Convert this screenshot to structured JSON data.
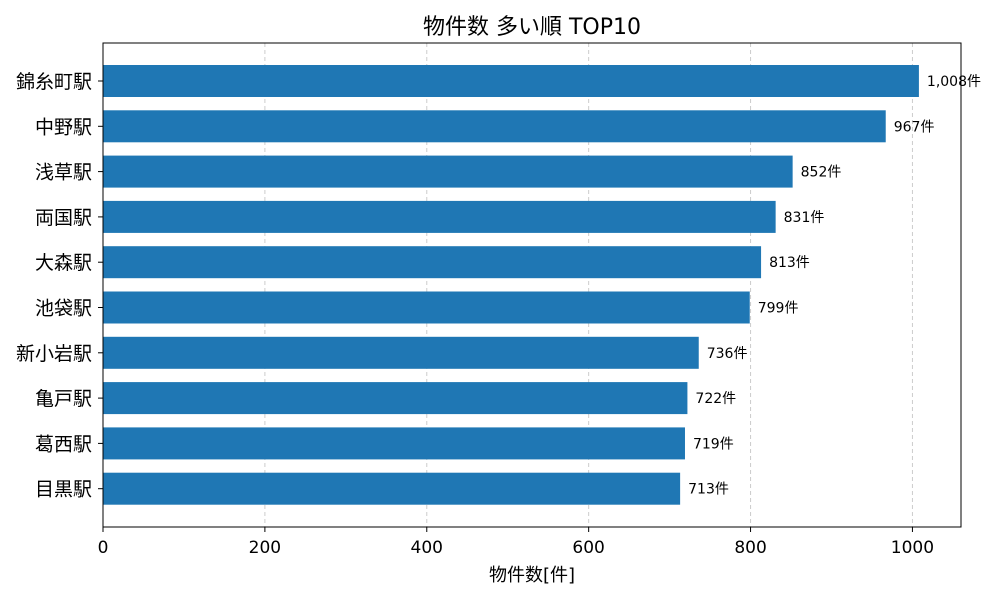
{
  "chart_data": {
    "type": "bar",
    "orientation": "horizontal",
    "title": "物件数 多い順 TOP10",
    "xlabel": "物件数[件]",
    "ylabel": "",
    "categories": [
      "錦糸町駅",
      "中野駅",
      "浅草駅",
      "両国駅",
      "大森駅",
      "池袋駅",
      "新小岩駅",
      "亀戸駅",
      "葛西駅",
      "目黒駅"
    ],
    "values": [
      1008,
      967,
      852,
      831,
      813,
      799,
      736,
      722,
      719,
      713
    ],
    "data_labels": [
      "1,008件",
      "967件",
      "852件",
      "831件",
      "813件",
      "799件",
      "736件",
      "722件",
      "719件",
      "713件"
    ],
    "xlim": [
      0,
      1060
    ],
    "xticks": [
      0,
      200,
      400,
      600,
      800,
      1000
    ],
    "grid": "x-dashed",
    "bar_color": "#1f77b4"
  }
}
